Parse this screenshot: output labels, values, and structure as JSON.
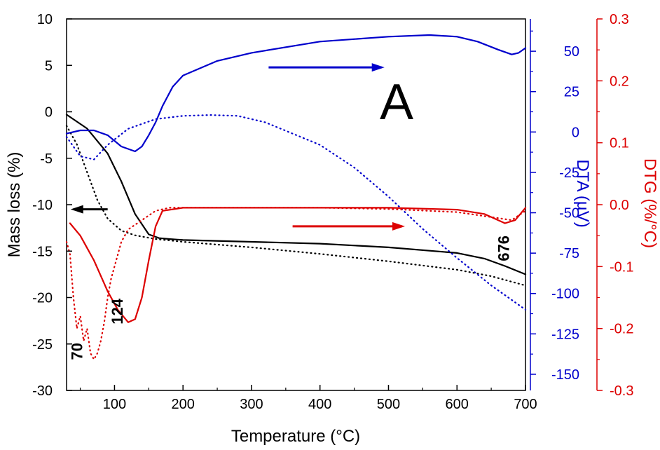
{
  "chart_data": {
    "type": "line",
    "panel_label": "A",
    "xlabel": "Temperature (°C)",
    "x_ticks": [
      100,
      200,
      300,
      400,
      500,
      600,
      700
    ],
    "xlim": [
      30,
      700
    ],
    "left_axis": {
      "label": "Mass loss (%)",
      "color": "#000000",
      "ylim": [
        -30,
        10
      ],
      "ticks": [
        10,
        5,
        0,
        -5,
        -10,
        -15,
        -20,
        -25,
        -30
      ]
    },
    "dta_axis": {
      "label": "DTA (µV)",
      "color": "#0000cc",
      "ylim": [
        -160,
        70
      ],
      "ticks": [
        50,
        25,
        0,
        -25,
        -50,
        -75,
        -100,
        -125,
        -150
      ]
    },
    "dtg_axis": {
      "label": "DTG (%/°C)",
      "color": "#dd0000",
      "ylim": [
        -0.3,
        0.3
      ],
      "ticks": [
        "0.3",
        "0.2",
        "0.1",
        "0.0",
        "-0.1",
        "-0.2",
        "-0.3"
      ]
    },
    "series": [
      {
        "axis": "left",
        "style": "solid",
        "color": "#000000",
        "x": [
          30,
          60,
          90,
          110,
          130,
          150,
          165,
          180,
          200,
          300,
          400,
          500,
          600,
          640,
          670,
          700
        ],
        "y": [
          -0.3,
          -1.8,
          -4.5,
          -7.5,
          -11,
          -13.2,
          -13.6,
          -13.7,
          -13.8,
          -14.0,
          -14.2,
          -14.6,
          -15.2,
          -15.8,
          -16.6,
          -17.5
        ]
      },
      {
        "axis": "left",
        "style": "dotted",
        "color": "#000000",
        "x": [
          30,
          45,
          60,
          75,
          90,
          110,
          130,
          160,
          200,
          300,
          400,
          500,
          600,
          650,
          700
        ],
        "y": [
          -1.5,
          -3.5,
          -6.5,
          -9.5,
          -11.5,
          -12.8,
          -13.3,
          -13.7,
          -14.0,
          -14.6,
          -15.3,
          -16.1,
          -17.0,
          -17.7,
          -18.7
        ]
      },
      {
        "axis": "dta",
        "style": "solid",
        "color": "#0000cc",
        "x": [
          30,
          50,
          70,
          90,
          110,
          130,
          140,
          150,
          160,
          170,
          185,
          200,
          250,
          300,
          400,
          500,
          560,
          600,
          630,
          660,
          680,
          690,
          700
        ],
        "y": [
          -1,
          1,
          1,
          -2,
          -9,
          -12,
          -9,
          -2,
          6,
          16,
          28,
          35,
          44,
          49,
          56,
          59,
          60,
          59,
          56,
          51,
          48,
          49,
          52
        ]
      },
      {
        "axis": "dta",
        "style": "dotted",
        "color": "#0000cc",
        "x": [
          30,
          50,
          70,
          90,
          120,
          160,
          200,
          240,
          280,
          320,
          400,
          450,
          500,
          550,
          600,
          650,
          700
        ],
        "y": [
          -3,
          -15,
          -17,
          -8,
          2,
          8,
          10,
          10.5,
          10,
          6,
          -8,
          -22,
          -40,
          -60,
          -78,
          -95,
          -110
        ]
      },
      {
        "axis": "dtg",
        "style": "solid",
        "color": "#dd0000",
        "x": [
          35,
          50,
          70,
          90,
          105,
          120,
          130,
          140,
          150,
          160,
          170,
          200,
          300,
          400,
          500,
          600,
          640,
          670,
          685,
          700
        ],
        "y": [
          -0.03,
          -0.05,
          -0.09,
          -0.14,
          -0.17,
          -0.19,
          -0.185,
          -0.15,
          -0.09,
          -0.035,
          -0.01,
          -0.005,
          -0.005,
          -0.005,
          -0.005,
          -0.008,
          -0.015,
          -0.03,
          -0.025,
          -0.005
        ]
      },
      {
        "axis": "dtg",
        "style": "dotted",
        "color": "#dd0000",
        "x": [
          30,
          35,
          40,
          45,
          50,
          55,
          60,
          65,
          70,
          75,
          80,
          85,
          90,
          95,
          100,
          110,
          120,
          140,
          160,
          180,
          250,
          400,
          500,
          600,
          650,
          680,
          700
        ],
        "y": [
          -0.06,
          -0.08,
          -0.15,
          -0.2,
          -0.18,
          -0.22,
          -0.2,
          -0.24,
          -0.25,
          -0.24,
          -0.22,
          -0.19,
          -0.15,
          -0.12,
          -0.1,
          -0.06,
          -0.04,
          -0.025,
          -0.01,
          -0.005,
          -0.005,
          -0.005,
          -0.007,
          -0.012,
          -0.02,
          -0.025,
          -0.01
        ]
      }
    ],
    "annotations": [
      {
        "text": "70",
        "x": 53,
        "y_mass": -25.8
      },
      {
        "text": "124",
        "x": 112,
        "y_mass": -21.5
      },
      {
        "text": "676",
        "x": 676,
        "y_mass": -14.7
      }
    ],
    "arrows": [
      {
        "direction": "left",
        "axis": "left",
        "color": "#000000"
      },
      {
        "direction": "right",
        "axis": "dta",
        "color": "#0000cc"
      },
      {
        "direction": "right",
        "axis": "dtg",
        "color": "#dd0000"
      }
    ]
  }
}
